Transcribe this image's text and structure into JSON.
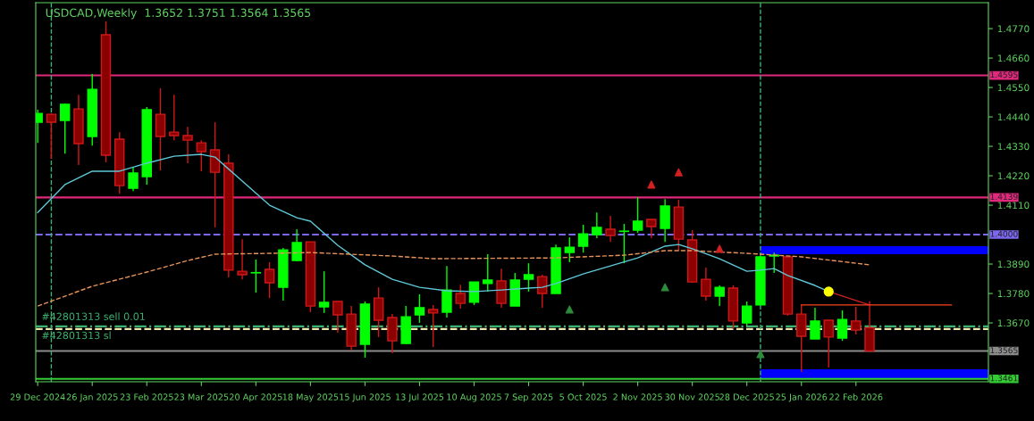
{
  "chart_data": {
    "type": "candlestick",
    "title": "USDCAD,Weekly  1.3652 1.3751 1.3564 1.3565",
    "x": [
      "2024-12-29",
      "2025-01-05",
      "2025-01-12",
      "2025-01-19",
      "2025-01-26",
      "2025-02-02",
      "2025-02-09",
      "2025-02-16",
      "2025-02-23",
      "2025-03-02",
      "2025-03-09",
      "2025-03-16",
      "2025-03-23",
      "2025-03-30",
      "2025-04-06",
      "2025-04-13",
      "2025-04-20",
      "2025-04-27",
      "2025-05-04",
      "2025-05-11",
      "2025-05-18",
      "2025-05-25",
      "2025-06-01",
      "2025-06-08",
      "2025-06-15",
      "2025-06-22",
      "2025-06-29",
      "2025-07-06",
      "2025-07-13",
      "2025-07-20",
      "2025-07-27",
      "2025-08-03",
      "2025-08-10",
      "2025-08-17",
      "2025-08-24",
      "2025-08-31",
      "2025-09-07",
      "2025-09-14",
      "2025-09-21",
      "2025-09-28",
      "2025-10-05",
      "2025-10-12",
      "2025-10-19",
      "2025-10-26",
      "2025-11-02",
      "2025-11-09",
      "2025-11-16",
      "2025-11-23",
      "2025-11-30",
      "2025-12-07",
      "2025-12-14",
      "2025-12-21",
      "2025-12-28",
      "2026-01-04",
      "2026-01-11",
      "2026-01-18",
      "2026-01-25",
      "2026-02-01",
      "2026-02-08",
      "2026-02-15",
      "2026-02-22",
      "2026-03-01"
    ],
    "ohlc": [
      [
        1.442,
        1.4467,
        1.4343,
        1.4453
      ],
      [
        1.445,
        1.4453,
        1.4283,
        1.442
      ],
      [
        1.4427,
        1.449,
        1.4303,
        1.4487
      ],
      [
        1.447,
        1.4523,
        1.426,
        1.434
      ],
      [
        1.4367,
        1.46,
        1.4333,
        1.4543
      ],
      [
        1.4747,
        1.4797,
        1.427,
        1.4297
      ],
      [
        1.4357,
        1.4383,
        1.4153,
        1.4183
      ],
      [
        1.4173,
        1.425,
        1.4163,
        1.423
      ],
      [
        1.4217,
        1.4477,
        1.4187,
        1.4467
      ],
      [
        1.445,
        1.4547,
        1.424,
        1.4367
      ],
      [
        1.4383,
        1.4523,
        1.4353,
        1.437
      ],
      [
        1.437,
        1.4403,
        1.4267,
        1.4353
      ],
      [
        1.4343,
        1.4353,
        1.4237,
        1.431
      ],
      [
        1.4317,
        1.442,
        1.4027,
        1.4233
      ],
      [
        1.4267,
        1.43,
        1.384,
        1.3867
      ],
      [
        1.3863,
        1.3983,
        1.3833,
        1.385
      ],
      [
        1.3857,
        1.3907,
        1.3783,
        1.3858
      ],
      [
        1.387,
        1.3897,
        1.3763,
        1.382
      ],
      [
        1.3803,
        1.395,
        1.3753,
        1.3943
      ],
      [
        1.3903,
        1.402,
        1.39,
        1.397
      ],
      [
        1.3973,
        1.3973,
        1.371,
        1.3733
      ],
      [
        1.373,
        1.3863,
        1.3707,
        1.3747
      ],
      [
        1.375,
        1.375,
        1.3633,
        1.37
      ],
      [
        1.3703,
        1.3733,
        1.3567,
        1.3583
      ],
      [
        1.359,
        1.375,
        1.354,
        1.374
      ],
      [
        1.3763,
        1.3803,
        1.3617,
        1.368
      ],
      [
        1.369,
        1.3703,
        1.3557,
        1.3603
      ],
      [
        1.3593,
        1.3733,
        1.359,
        1.3693
      ],
      [
        1.37,
        1.3777,
        1.367,
        1.3727
      ],
      [
        1.372,
        1.3737,
        1.358,
        1.3707
      ],
      [
        1.371,
        1.3883,
        1.369,
        1.3793
      ],
      [
        1.378,
        1.3813,
        1.3723,
        1.3743
      ],
      [
        1.3747,
        1.3823,
        1.3737,
        1.3823
      ],
      [
        1.3817,
        1.3927,
        1.3787,
        1.383
      ],
      [
        1.3827,
        1.3873,
        1.3727,
        1.3743
      ],
      [
        1.3733,
        1.3857,
        1.3733,
        1.383
      ],
      [
        1.3833,
        1.3893,
        1.3787,
        1.385
      ],
      [
        1.3843,
        1.385,
        1.3727,
        1.378
      ],
      [
        1.378,
        1.3963,
        1.378,
        1.395
      ],
      [
        1.3933,
        1.399,
        1.3897,
        1.3953
      ],
      [
        1.3957,
        1.4037,
        1.3933,
        1.4003
      ],
      [
        1.4,
        1.4083,
        1.3987,
        1.4027
      ],
      [
        1.402,
        1.407,
        1.3973,
        1.3997
      ],
      [
        1.4012,
        1.404,
        1.3893,
        1.4013
      ],
      [
        1.4017,
        1.414,
        1.4007,
        1.405
      ],
      [
        1.4057,
        1.4057,
        1.3987,
        1.403
      ],
      [
        1.4023,
        1.4133,
        1.3973,
        1.4107
      ],
      [
        1.4103,
        1.413,
        1.394,
        1.3983
      ],
      [
        1.398,
        1.4017,
        1.382,
        1.3823
      ],
      [
        1.3833,
        1.3877,
        1.3753,
        1.377
      ],
      [
        1.377,
        1.381,
        1.3733,
        1.3803
      ],
      [
        1.38,
        1.381,
        1.3647,
        1.3677
      ],
      [
        1.367,
        1.375,
        1.366,
        1.3733
      ],
      [
        1.3737,
        1.3917,
        1.3737,
        1.3917
      ],
      [
        1.392,
        1.3933,
        1.3857,
        1.3923
      ],
      [
        1.3917,
        1.3917,
        1.3697,
        1.3703
      ],
      [
        1.3703,
        1.3737,
        1.3487,
        1.362
      ],
      [
        1.361,
        1.3727,
        1.361,
        1.3677
      ],
      [
        1.368,
        1.368,
        1.3503,
        1.3617
      ],
      [
        1.3613,
        1.3717,
        1.3603,
        1.3683
      ],
      [
        1.3677,
        1.373,
        1.3627,
        1.3643
      ],
      [
        1.3652,
        1.3751,
        1.3564,
        1.3565
      ]
    ],
    "colors": [
      "#00ff00",
      "#8b0000",
      "#00ff00",
      "#8b0000",
      "#00ff00",
      "#8b0000",
      "#8b0000",
      "#00ff00",
      "#00ff00",
      "#8b0000",
      "#8b0000",
      "#8b0000",
      "#8b0000",
      "#8b0000",
      "#8b0000",
      "#8b0000",
      "#00ff00",
      "#8b0000",
      "#00ff00",
      "#00ff00",
      "#8b0000",
      "#00ff00",
      "#8b0000",
      "#8b0000",
      "#00ff00",
      "#8b0000",
      "#8b0000",
      "#00ff00",
      "#00ff00",
      "#8b0000",
      "#00ff00",
      "#8b0000",
      "#00ff00",
      "#00ff00",
      "#8b0000",
      "#00ff00",
      "#00ff00",
      "#8b0000",
      "#00ff00",
      "#00ff00",
      "#00ff00",
      "#00ff00",
      "#8b0000",
      "#00ff00",
      "#00ff00",
      "#8b0000",
      "#00ff00",
      "#8b0000",
      "#8b0000",
      "#8b0000",
      "#00ff00",
      "#8b0000",
      "#00ff00",
      "#00ff00",
      "#00ff00",
      "#8b0000",
      "#8b0000",
      "#00ff00",
      "#8b0000",
      "#00ff00",
      "#8b0000",
      "#8b0000"
    ],
    "series": [
      {
        "type": "line",
        "color": "#5fc8d8",
        "x": [
          "2024-12-29",
          "2025-01-12",
          "2025-01-26",
          "2025-02-09",
          "2025-02-23",
          "2025-03-09",
          "2025-03-23",
          "2025-03-30",
          "2025-04-13",
          "2025-04-27",
          "2025-05-11",
          "2025-05-18",
          "2025-06-01",
          "2025-06-15",
          "2025-06-29",
          "2025-07-13",
          "2025-07-27",
          "2025-08-10",
          "2025-08-24",
          "2025-09-07",
          "2025-09-14",
          "2025-09-21",
          "2025-10-05",
          "2025-10-19",
          "2025-11-02",
          "2025-11-16",
          "2025-11-23",
          "2025-11-30",
          "2025-12-14",
          "2025-12-28",
          "2026-01-04",
          "2026-01-11",
          "2026-01-18",
          "2026-02-01",
          "2026-02-08"
        ],
        "values": [
          1.4083,
          1.4187,
          1.4237,
          1.4237,
          1.4267,
          1.4293,
          1.43,
          1.429,
          1.42,
          1.411,
          1.4063,
          1.405,
          1.396,
          1.3887,
          1.3833,
          1.3803,
          1.379,
          1.3787,
          1.3793,
          1.38,
          1.3803,
          1.3817,
          1.3853,
          1.3883,
          1.3913,
          1.3957,
          1.3963,
          1.3947,
          1.391,
          1.3863,
          1.3867,
          1.3873,
          1.3847,
          1.381,
          1.3787
        ]
      },
      {
        "type": "line",
        "color": "#e8935a",
        "line_style": "dashed",
        "x": [
          "2024-12-29",
          "2025-01-26",
          "2025-02-23",
          "2025-03-16",
          "2025-03-30",
          "2025-04-27",
          "2025-05-18",
          "2025-06-29",
          "2025-07-20",
          "2025-09-21",
          "2025-10-26",
          "2025-11-16",
          "2025-11-30",
          "2025-12-28",
          "2026-01-25",
          "2026-03-01"
        ],
        "values": [
          1.3733,
          1.3807,
          1.386,
          1.3903,
          1.3927,
          1.393,
          1.3933,
          1.392,
          1.391,
          1.3913,
          1.3923,
          1.394,
          1.394,
          1.393,
          1.3917,
          1.3887
        ]
      },
      {
        "type": "line",
        "color": "#d02020",
        "x": [
          "2026-02-08",
          "2026-03-01"
        ],
        "values": [
          1.3787,
          1.3737
        ]
      },
      {
        "type": "line",
        "color": "#ff4020",
        "x": [
          "2026-01-25",
          "2026-04-12"
        ],
        "values": [
          1.3737,
          1.3737
        ]
      },
      {
        "type": "scatter",
        "color": "#ffff00",
        "marker": "circle",
        "x": [
          "2026-02-08"
        ],
        "values": [
          1.3787
        ]
      },
      {
        "type": "scatter",
        "color": "#d02020",
        "marker": "triangle",
        "x": [
          "2025-11-09",
          "2025-11-23",
          "2025-12-14"
        ],
        "values": [
          1.4187,
          1.4233,
          1.3947
        ]
      },
      {
        "type": "scatter",
        "color": "#2e8b3a",
        "marker": "triangle",
        "x": [
          "2025-09-28",
          "2025-11-16",
          "2026-01-04"
        ],
        "values": [
          1.372,
          1.3803,
          1.3553
        ]
      }
    ],
    "xlim": [
      "2024-12-28",
      "2026-05-01"
    ],
    "ylim": [
      1.345,
      1.4867
    ],
    "xticks": [
      {
        "value": "2024-12-29",
        "label": "29 Dec 2024"
      },
      {
        "value": "2025-01-26",
        "label": "26 Jan 2025"
      },
      {
        "value": "2025-02-23",
        "label": "23 Feb 2025"
      },
      {
        "value": "2025-03-23",
        "label": "23 Mar 2025"
      },
      {
        "value": "2025-04-20",
        "label": "20 Apr 2025"
      },
      {
        "value": "2025-05-18",
        "label": "18 May 2025"
      },
      {
        "value": "2025-06-15",
        "label": "15 Jun 2025"
      },
      {
        "value": "2025-07-13",
        "label": "13 Jul 2025"
      },
      {
        "value": "2025-08-10",
        "label": "10 Aug 2025"
      },
      {
        "value": "2025-09-07",
        "label": "7 Sep 2025"
      },
      {
        "value": "2025-10-05",
        "label": "5 Oct 2025"
      },
      {
        "value": "2025-11-02",
        "label": "2 Nov 2025"
      },
      {
        "value": "2025-11-30",
        "label": "30 Nov 2025"
      },
      {
        "value": "2025-12-28",
        "label": "28 Dec 2025"
      },
      {
        "value": "2026-01-25",
        "label": "25 Jan 2026"
      },
      {
        "value": "2026-02-22",
        "label": "22 Feb 2026"
      }
    ],
    "yticks": [
      {
        "value": 1.477,
        "label": "1.4770"
      },
      {
        "value": 1.466,
        "label": "1.4660"
      },
      {
        "value": 1.455,
        "label": "1.4550"
      },
      {
        "value": 1.444,
        "label": "1.4440"
      },
      {
        "value": 1.433,
        "label": "1.4330"
      },
      {
        "value": 1.422,
        "label": "1.4220"
      },
      {
        "value": 1.411,
        "label": "1.4110"
      },
      {
        "value": 1.389,
        "label": "1.3890"
      },
      {
        "value": 1.378,
        "label": "1.3780"
      },
      {
        "value": 1.367,
        "label": "1.3670"
      }
    ],
    "ref_lines": [
      {
        "axis": "y",
        "value": 1.4595,
        "label": "1.4595",
        "color": "#e0287c",
        "line_style": "solid"
      },
      {
        "axis": "y",
        "value": 1.4139,
        "label": "1.4139",
        "color": "#e0287c",
        "line_style": "solid"
      },
      {
        "axis": "y",
        "value": 1.4,
        "label": "1.4000",
        "color": "#7b68ee",
        "line_style": "dashed"
      },
      {
        "axis": "y",
        "value": 1.3657,
        "color": "#3cb371",
        "line_style": "dashdot"
      },
      {
        "axis": "y",
        "value": 1.3647,
        "color": "#eee8aa",
        "line_style": "dashed"
      },
      {
        "axis": "y",
        "value": 1.3565,
        "label": "1.3565",
        "color": "#8c8c8c",
        "line_style": "solid"
      },
      {
        "axis": "y",
        "value": 1.3461,
        "label": "1.3461",
        "color": "#32cd32",
        "line_style": "solid"
      },
      {
        "axis": "x",
        "value": "2025-01-05",
        "color": "#3cb371",
        "line_style": "dashed"
      },
      {
        "axis": "x",
        "value": "2026-01-04",
        "color": "#3cb371",
        "line_style": "dashed"
      }
    ],
    "bands": [
      {
        "axis": "y",
        "from": 1.3927,
        "to": 1.3957,
        "color": "#0000ff"
      },
      {
        "axis": "y",
        "from": 1.3463,
        "to": 1.3497,
        "color": "#0000ff"
      }
    ],
    "annotations": [
      "#42801313 sell 0.01",
      "#42801313 sl"
    ]
  }
}
